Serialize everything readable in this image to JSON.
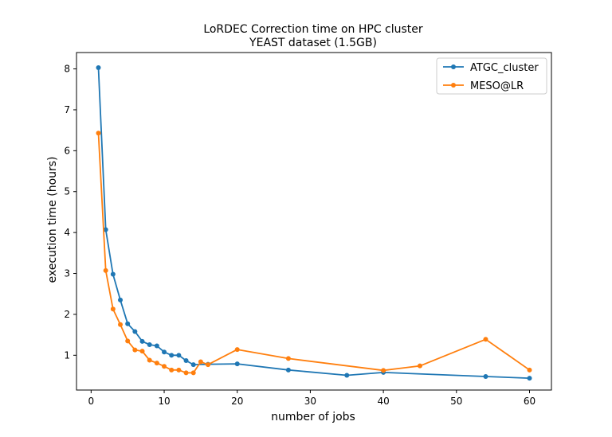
{
  "chart_data": {
    "type": "line",
    "title": "LoRDEC Correction time on HPC cluster",
    "subtitle": "YEAST dataset (1.5GB)",
    "xlabel": "number of jobs",
    "ylabel": "execution time (hours)",
    "xlim": [
      -2,
      63
    ],
    "ylim": [
      0.15,
      8.4
    ],
    "xticks": [
      0,
      10,
      20,
      30,
      40,
      50,
      60
    ],
    "yticks": [
      1,
      2,
      3,
      4,
      5,
      6,
      7,
      8
    ],
    "grid": false,
    "legend_position": "top-right",
    "series": [
      {
        "name": "ATGC_cluster",
        "color": "#1f77b4",
        "points": [
          [
            1,
            8.03
          ],
          [
            2,
            4.07
          ],
          [
            3,
            2.98
          ],
          [
            4,
            2.35
          ],
          [
            5,
            1.77
          ],
          [
            6,
            1.58
          ],
          [
            7,
            1.34
          ],
          [
            8,
            1.26
          ],
          [
            9,
            1.23
          ],
          [
            10,
            1.08
          ],
          [
            11,
            1.0
          ],
          [
            12,
            1.0
          ],
          [
            13,
            0.87
          ],
          [
            14,
            0.77
          ],
          [
            16,
            0.78
          ],
          [
            20,
            0.79
          ],
          [
            27,
            0.64
          ],
          [
            35,
            0.51
          ],
          [
            40,
            0.58
          ],
          [
            54,
            0.48
          ],
          [
            60,
            0.44
          ]
        ]
      },
      {
        "name": "MESO@LR",
        "color": "#ff7f0e",
        "points": [
          [
            1,
            6.43
          ],
          [
            2,
            3.07
          ],
          [
            3,
            2.13
          ],
          [
            4,
            1.75
          ],
          [
            5,
            1.35
          ],
          [
            6,
            1.13
          ],
          [
            7,
            1.1
          ],
          [
            8,
            0.88
          ],
          [
            9,
            0.81
          ],
          [
            10,
            0.73
          ],
          [
            11,
            0.64
          ],
          [
            12,
            0.64
          ],
          [
            13,
            0.57
          ],
          [
            14,
            0.57
          ],
          [
            15,
            0.84
          ],
          [
            16,
            0.77
          ],
          [
            20,
            1.14
          ],
          [
            27,
            0.92
          ],
          [
            40,
            0.63
          ],
          [
            45,
            0.74
          ],
          [
            54,
            1.39
          ],
          [
            60,
            0.64
          ]
        ]
      }
    ]
  }
}
